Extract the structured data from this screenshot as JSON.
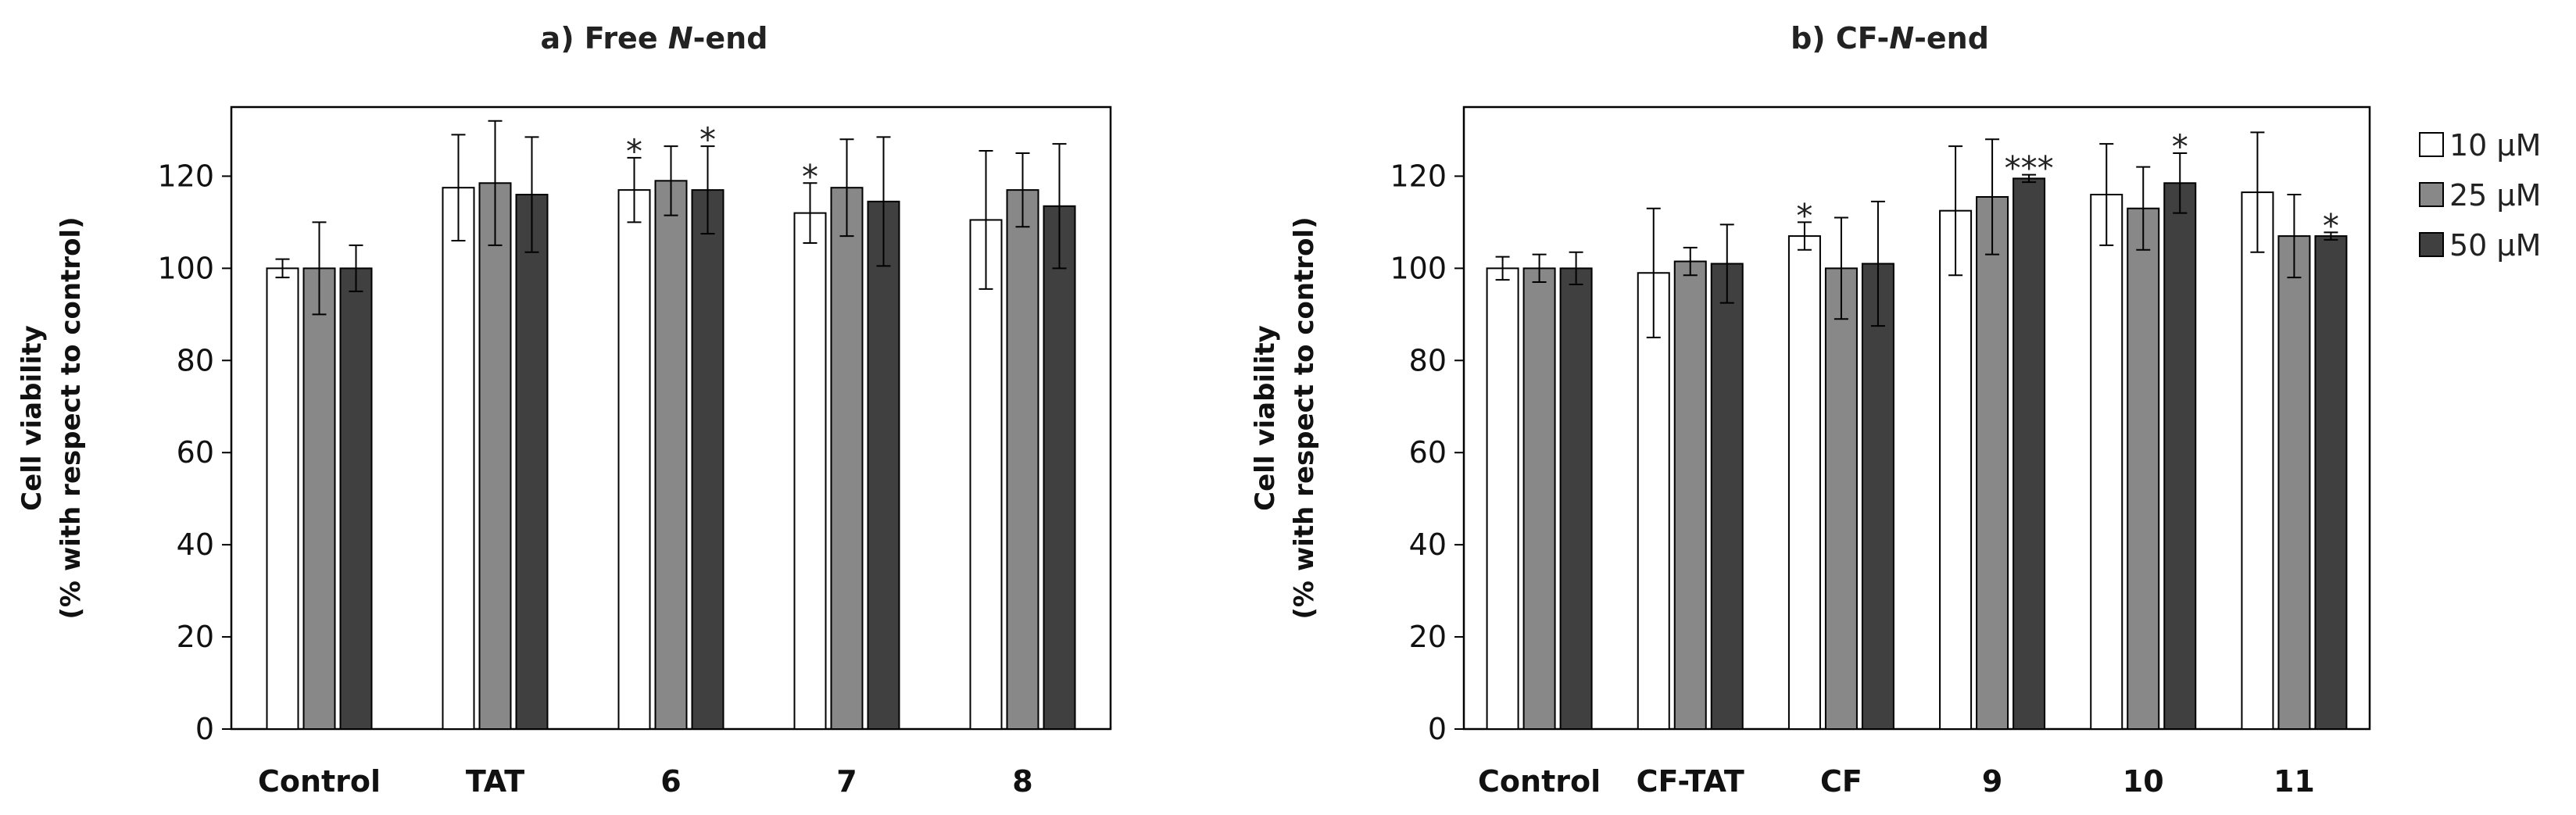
{
  "colors": {
    "s10": "#ffffff",
    "s25": "#888888",
    "s50": "#404040",
    "stroke": "#000000",
    "text": "#111111"
  },
  "legend": [
    {
      "label": "10 µM",
      "series": 0
    },
    {
      "label": "25 µM",
      "series": 1
    },
    {
      "label": "50 µM",
      "series": 2
    }
  ],
  "chart_data": [
    {
      "type": "bar",
      "title_prefix": "a) Free ",
      "title_italic": "N",
      "title_suffix": "-end",
      "ylabel_line1": "Cell viability",
      "ylabel_line2": "(% with respect to control)",
      "ylim": [
        0,
        135
      ],
      "yticks": [
        0,
        20,
        40,
        60,
        80,
        100,
        120
      ],
      "categories": [
        "Control",
        "TAT",
        "6",
        "7",
        "8"
      ],
      "series": [
        {
          "name": "10 µM",
          "values": [
            100,
            117.5,
            117,
            112,
            110.5
          ],
          "errors": [
            2,
            11.5,
            7,
            6.5,
            15
          ]
        },
        {
          "name": "25 µM",
          "values": [
            100,
            118.5,
            119,
            117.5,
            117
          ],
          "errors": [
            10,
            13.5,
            7.5,
            10.5,
            8
          ]
        },
        {
          "name": "50 µM",
          "values": [
            100,
            116,
            117,
            114.5,
            113.5
          ],
          "errors": [
            5,
            12.5,
            9.5,
            14,
            13.5
          ]
        }
      ],
      "annotations": [
        {
          "category": 2,
          "series": 0,
          "text": "*"
        },
        {
          "category": 2,
          "series": 2,
          "text": "*"
        },
        {
          "category": 3,
          "series": 0,
          "text": "*"
        }
      ]
    },
    {
      "type": "bar",
      "title_prefix": "b) CF-",
      "title_italic": "N",
      "title_suffix": "-end",
      "ylabel_line1": "Cell viability",
      "ylabel_line2": "(% with respect to control)",
      "ylim": [
        0,
        135
      ],
      "yticks": [
        0,
        20,
        40,
        60,
        80,
        100,
        120
      ],
      "categories": [
        "Control",
        "CF-TAT",
        "CF",
        "9",
        "10",
        "11"
      ],
      "series": [
        {
          "name": "10 µM",
          "values": [
            100,
            99,
            107,
            112.5,
            116,
            116.5
          ],
          "errors": [
            2.5,
            14,
            3,
            14,
            11,
            13
          ]
        },
        {
          "name": "25 µM",
          "values": [
            100,
            101.5,
            100,
            115.5,
            113,
            107
          ],
          "errors": [
            3,
            3,
            11,
            12.5,
            9,
            9
          ]
        },
        {
          "name": "50 µM",
          "values": [
            100,
            101,
            101,
            119.5,
            118.5,
            107
          ],
          "errors": [
            3.5,
            8.5,
            13.5,
            0.8,
            6.5,
            0.8
          ]
        }
      ],
      "annotations": [
        {
          "category": 2,
          "series": 0,
          "text": "*"
        },
        {
          "category": 3,
          "series": 2,
          "text": "***"
        },
        {
          "category": 4,
          "series": 2,
          "text": "*"
        },
        {
          "category": 5,
          "series": 2,
          "text": "*"
        }
      ]
    }
  ]
}
